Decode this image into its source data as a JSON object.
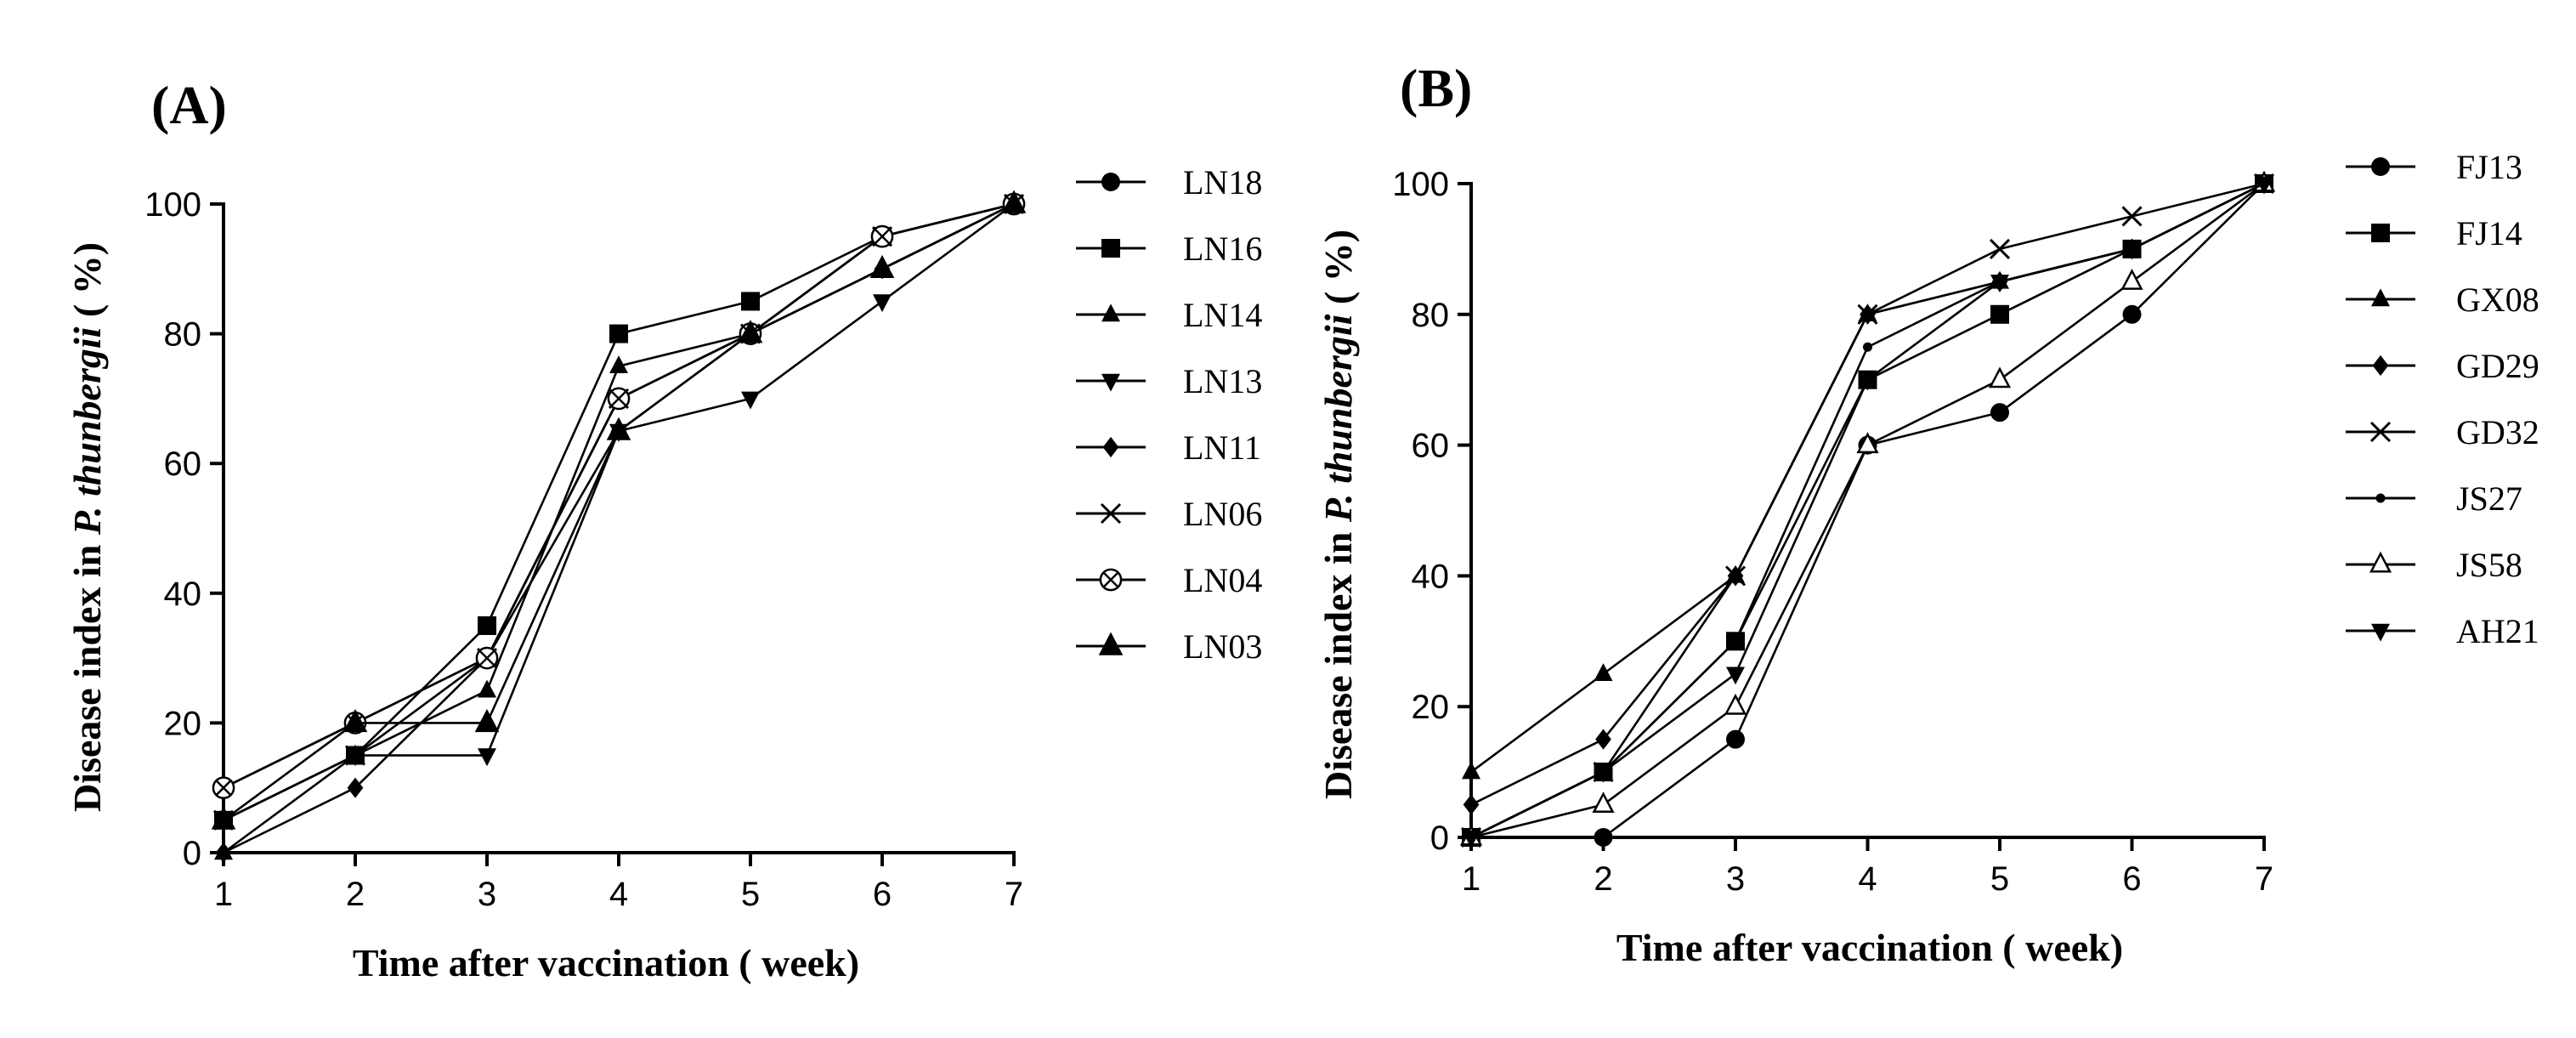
{
  "chart_data": [
    {
      "panel": "(A)",
      "type": "line",
      "xlabel": "Time after vaccination ( week)",
      "ylabel_prefix": "Disease index in ",
      "ylabel_italic": "P. thunbergii",
      "ylabel_suffix": " ( %)",
      "x": [
        1,
        2,
        3,
        4,
        5,
        6,
        7
      ],
      "xlim": [
        1,
        7
      ],
      "ylim": [
        0,
        100
      ],
      "yticks": [
        0,
        20,
        40,
        60,
        80,
        100
      ],
      "xticks": [
        1,
        2,
        3,
        4,
        5,
        6,
        7
      ],
      "grid": false,
      "legend_position": "right",
      "series": [
        {
          "name": "LN18",
          "marker": "circle",
          "values": [
            10,
            20,
            30,
            70,
            80,
            95,
            100
          ]
        },
        {
          "name": "LN16",
          "marker": "square",
          "values": [
            5,
            15,
            35,
            80,
            85,
            95,
            100
          ]
        },
        {
          "name": "LN14",
          "marker": "triangle",
          "values": [
            0,
            15,
            25,
            75,
            80,
            90,
            100
          ]
        },
        {
          "name": "LN13",
          "marker": "triangle-down",
          "values": [
            5,
            15,
            15,
            65,
            70,
            85,
            100
          ]
        },
        {
          "name": "LN11",
          "marker": "diamond",
          "values": [
            0,
            10,
            30,
            65,
            80,
            90,
            100
          ]
        },
        {
          "name": "LN06",
          "marker": "x",
          "values": [
            5,
            15,
            30,
            70,
            80,
            95,
            100
          ]
        },
        {
          "name": "LN04",
          "marker": "circle-x",
          "values": [
            10,
            20,
            30,
            70,
            80,
            95,
            100
          ]
        },
        {
          "name": "LN03",
          "marker": "triangle-large",
          "values": [
            5,
            20,
            20,
            65,
            80,
            90,
            100
          ]
        }
      ]
    },
    {
      "panel": "(B)",
      "type": "line",
      "xlabel": "Time after vaccination ( week)",
      "ylabel_prefix": "Disease index in ",
      "ylabel_italic": "P. thunbergii",
      "ylabel_suffix": " ( %)",
      "x": [
        1,
        2,
        3,
        4,
        5,
        6,
        7
      ],
      "xlim": [
        1,
        7
      ],
      "ylim": [
        0,
        100
      ],
      "yticks": [
        0,
        20,
        40,
        60,
        80,
        100
      ],
      "xticks": [
        1,
        2,
        3,
        4,
        5,
        6,
        7
      ],
      "grid": false,
      "legend_position": "right",
      "series": [
        {
          "name": "FJ13",
          "marker": "circle",
          "values": [
            0,
            0,
            15,
            60,
            65,
            80,
            100
          ]
        },
        {
          "name": "FJ14",
          "marker": "square",
          "values": [
            0,
            10,
            30,
            70,
            80,
            90,
            100
          ]
        },
        {
          "name": "GX08",
          "marker": "triangle",
          "values": [
            10,
            25,
            40,
            80,
            85,
            90,
            100
          ]
        },
        {
          "name": "GD29",
          "marker": "diamond",
          "values": [
            5,
            15,
            40,
            80,
            85,
            90,
            100
          ]
        },
        {
          "name": "GD32",
          "marker": "x",
          "values": [
            0,
            10,
            40,
            80,
            90,
            95,
            100
          ]
        },
        {
          "name": "JS27",
          "marker": "dot",
          "values": [
            0,
            10,
            30,
            75,
            85,
            90,
            100
          ]
        },
        {
          "name": "JS58",
          "marker": "triangle-open",
          "values": [
            0,
            5,
            20,
            60,
            70,
            85,
            100
          ]
        },
        {
          "name": "AH21",
          "marker": "triangle-down",
          "values": [
            0,
            10,
            25,
            70,
            85,
            90,
            100
          ]
        }
      ]
    }
  ]
}
